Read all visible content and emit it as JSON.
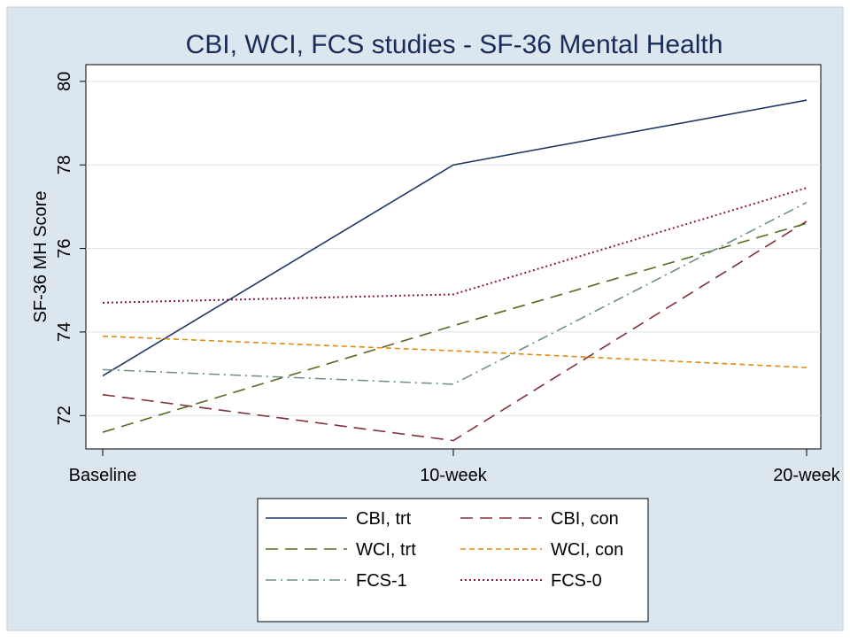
{
  "chart_data": {
    "type": "line",
    "title": "CBI, WCI, FCS studies - SF-36 Mental Health",
    "xlabel": "",
    "ylabel": "SF-36 MH Score",
    "categories": [
      "Baseline",
      "10-week",
      "20-week"
    ],
    "ylim": [
      71.2,
      80.4
    ],
    "yticks": [
      72,
      74,
      76,
      78,
      80
    ],
    "grid": true,
    "legend_position": "bottom",
    "series": [
      {
        "name": "CBI, trt",
        "values": [
          72.95,
          78.0,
          79.55
        ],
        "color": "#1f3864",
        "dash": "solid"
      },
      {
        "name": "CBI, con",
        "values": [
          72.5,
          71.4,
          76.65
        ],
        "color": "#80303a",
        "dash": "long-dash"
      },
      {
        "name": "WCI, trt",
        "values": [
          71.6,
          74.15,
          76.6
        ],
        "color": "#556b1f",
        "dash": "long-dash"
      },
      {
        "name": "WCI, con",
        "values": [
          73.9,
          73.55,
          73.15
        ],
        "color": "#e08a10",
        "dash": "short-dash"
      },
      {
        "name": "FCS-1",
        "values": [
          73.1,
          72.75,
          77.1
        ],
        "color": "#6f8f86",
        "dash": "dash-dot"
      },
      {
        "name": "FCS-0",
        "values": [
          74.7,
          74.9,
          77.45
        ],
        "color": "#8b1a3c",
        "dash": "dotted"
      }
    ]
  }
}
